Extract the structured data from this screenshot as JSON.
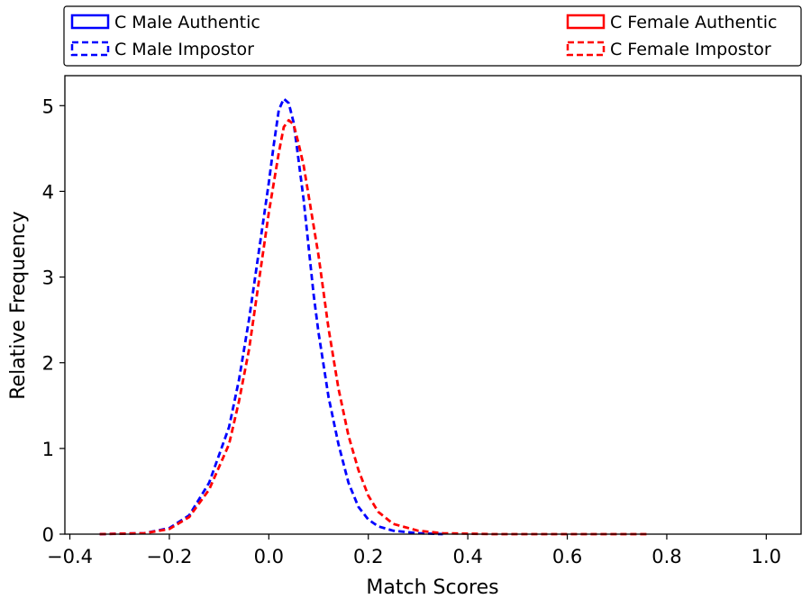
{
  "chart_data": {
    "type": "line",
    "title": "",
    "xlabel": "Match Scores",
    "ylabel": "Relative Frequency",
    "xlim": [
      -0.41,
      1.07
    ],
    "ylim": [
      0,
      5.35
    ],
    "xticks": [
      -0.4,
      -0.2,
      0.0,
      0.2,
      0.4,
      0.6,
      0.8,
      1.0
    ],
    "xtick_labels": [
      "−0.4",
      "−0.2",
      "0.0",
      "0.2",
      "0.4",
      "0.6",
      "0.8",
      "1.0"
    ],
    "yticks": [
      0,
      1,
      2,
      3,
      4,
      5
    ],
    "ytick_labels": [
      "0",
      "1",
      "2",
      "3",
      "4",
      "5"
    ],
    "grid": false,
    "legend_position": "top, above plot (two columns)",
    "legend": [
      {
        "label": "C Male Authentic",
        "color": "#0000ff",
        "style": "solid"
      },
      {
        "label": "C Female Authentic",
        "color": "#ff0000",
        "style": "solid"
      },
      {
        "label": "C Male Impostor",
        "color": "#0000ff",
        "style": "dashed"
      },
      {
        "label": "C Female Impostor",
        "color": "#ff0000",
        "style": "dashed"
      }
    ],
    "series": [
      {
        "name": "C Male Impostor",
        "color": "#0000ff",
        "style": "dashed",
        "points": [
          [
            -0.34,
            0
          ],
          [
            -0.25,
            0.01
          ],
          [
            -0.2,
            0.07
          ],
          [
            -0.16,
            0.22
          ],
          [
            -0.12,
            0.6
          ],
          [
            -0.08,
            1.25
          ],
          [
            -0.06,
            1.8
          ],
          [
            -0.04,
            2.5
          ],
          [
            -0.02,
            3.3
          ],
          [
            0.0,
            4.1
          ],
          [
            0.01,
            4.55
          ],
          [
            0.02,
            4.95
          ],
          [
            0.03,
            5.08
          ],
          [
            0.04,
            5.03
          ],
          [
            0.05,
            4.8
          ],
          [
            0.06,
            4.35
          ],
          [
            0.07,
            3.9
          ],
          [
            0.08,
            3.35
          ],
          [
            0.09,
            2.8
          ],
          [
            0.1,
            2.35
          ],
          [
            0.12,
            1.6
          ],
          [
            0.14,
            1.05
          ],
          [
            0.16,
            0.6
          ],
          [
            0.18,
            0.32
          ],
          [
            0.2,
            0.17
          ],
          [
            0.22,
            0.09
          ],
          [
            0.25,
            0.04
          ],
          [
            0.3,
            0.01
          ],
          [
            0.35,
            0.0
          ]
        ]
      },
      {
        "name": "C Female Impostor",
        "color": "#ff0000",
        "style": "dashed",
        "points": [
          [
            -0.34,
            0
          ],
          [
            -0.25,
            0.01
          ],
          [
            -0.2,
            0.06
          ],
          [
            -0.16,
            0.2
          ],
          [
            -0.12,
            0.52
          ],
          [
            -0.08,
            1.05
          ],
          [
            -0.06,
            1.55
          ],
          [
            -0.04,
            2.15
          ],
          [
            -0.02,
            2.95
          ],
          [
            0.0,
            3.75
          ],
          [
            0.02,
            4.45
          ],
          [
            0.03,
            4.75
          ],
          [
            0.04,
            4.83
          ],
          [
            0.05,
            4.78
          ],
          [
            0.06,
            4.55
          ],
          [
            0.07,
            4.3
          ],
          [
            0.08,
            3.95
          ],
          [
            0.1,
            3.25
          ],
          [
            0.12,
            2.4
          ],
          [
            0.14,
            1.7
          ],
          [
            0.16,
            1.15
          ],
          [
            0.18,
            0.75
          ],
          [
            0.2,
            0.45
          ],
          [
            0.22,
            0.26
          ],
          [
            0.25,
            0.12
          ],
          [
            0.3,
            0.04
          ],
          [
            0.35,
            0.01
          ],
          [
            0.45,
            0.0
          ],
          [
            0.76,
            0.0
          ]
        ]
      }
    ]
  }
}
